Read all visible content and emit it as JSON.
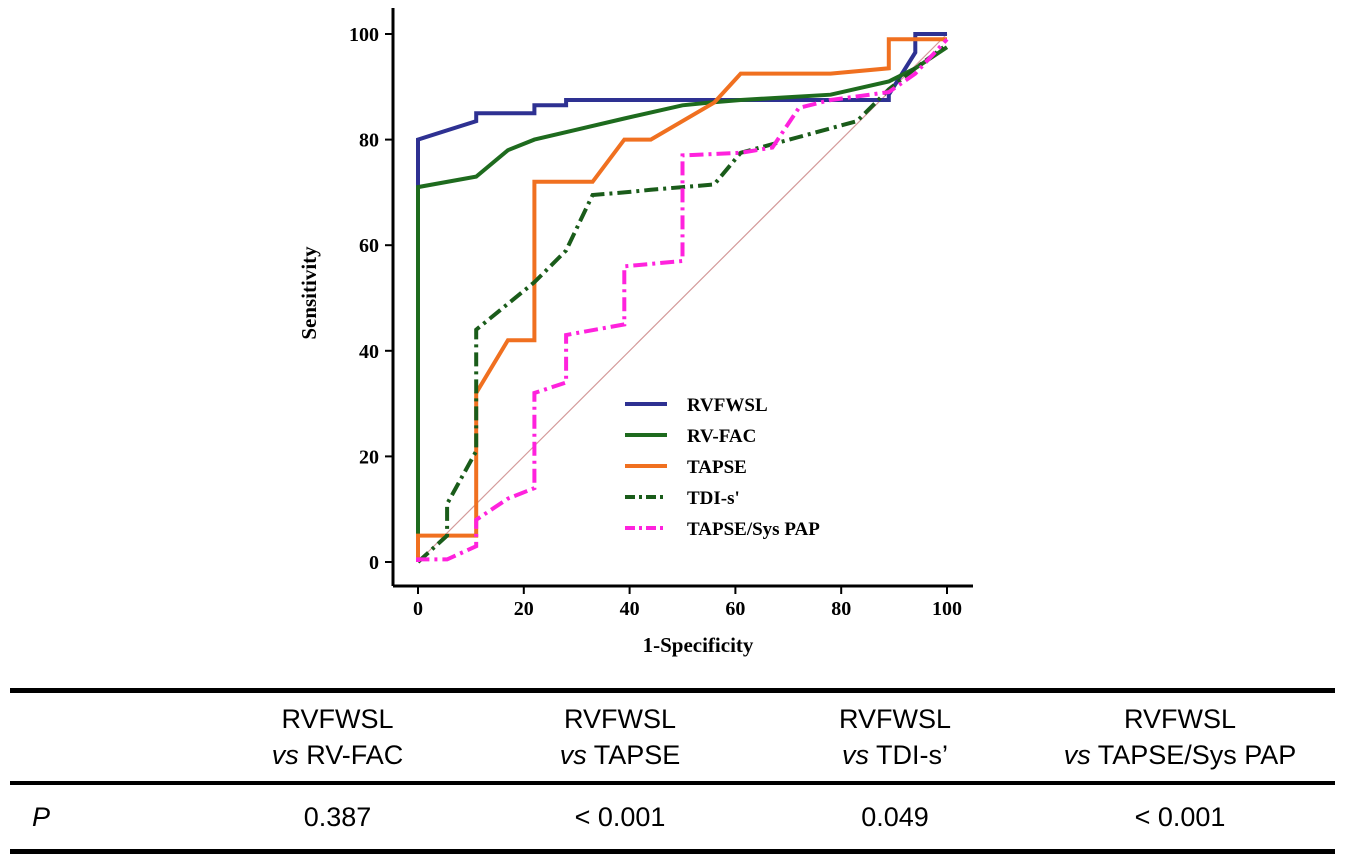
{
  "chart_data": {
    "type": "line",
    "title": "",
    "xlabel": "1-Specificity",
    "ylabel": "Sensitivity",
    "xlim": [
      0,
      100
    ],
    "ylim": [
      0,
      100
    ],
    "xticks": [
      0,
      20,
      40,
      60,
      80,
      100
    ],
    "yticks": [
      0,
      20,
      40,
      60,
      80,
      100
    ],
    "legend_position": "lower-right",
    "series": [
      {
        "name": "RVFWSL",
        "color": "#2e3192",
        "dash": "solid",
        "x": [
          0,
          0,
          0,
          11,
          11,
          22,
          22,
          28,
          28,
          89,
          89,
          94,
          94,
          100,
          100
        ],
        "y": [
          0,
          80,
          80,
          83.5,
          85,
          85,
          86.5,
          86.5,
          87.5,
          87.5,
          88.5,
          96.5,
          100,
          100,
          100
        ]
      },
      {
        "name": "RV-FAC",
        "color": "#1e6b1e",
        "dash": "solid",
        "x": [
          0,
          0,
          11,
          17,
          22,
          39,
          50,
          55,
          61,
          78,
          89,
          94,
          100
        ],
        "y": [
          0,
          71,
          73,
          78,
          80,
          84,
          86.5,
          87,
          87.5,
          88.5,
          91,
          93.5,
          97.5
        ]
      },
      {
        "name": "TAPSE",
        "color": "#f07020",
        "dash": "solid",
        "x": [
          0,
          0,
          11,
          11,
          17,
          22,
          22,
          33,
          39,
          44,
          56,
          61,
          78,
          89,
          89,
          100
        ],
        "y": [
          0,
          5,
          5,
          32,
          42,
          42,
          72,
          72,
          80,
          80,
          87,
          92.5,
          92.5,
          93.5,
          99,
          99
        ]
      },
      {
        "name": "TDI-s'",
        "color": "#1a5c1a",
        "dash": "dashdot",
        "x": [
          0,
          5.5,
          5.5,
          11,
          11,
          22,
          28,
          33,
          39,
          44,
          50,
          56,
          61,
          72,
          83,
          89,
          94,
          100
        ],
        "y": [
          0,
          5,
          11,
          21,
          44,
          53,
          59,
          69.5,
          70,
          70.5,
          71,
          71.5,
          77.5,
          80.5,
          83.5,
          89.5,
          93.5,
          98
        ]
      },
      {
        "name": "TAPSE/Sys PAP",
        "color": "#ff22dd",
        "dash": "dashdot",
        "x": [
          0,
          0,
          5.5,
          11,
          11,
          17,
          22,
          22,
          28,
          28,
          39,
          39,
          50,
          50,
          61,
          67,
          72,
          78,
          89,
          94,
          100
        ],
        "y": [
          0,
          0.5,
          0.5,
          3,
          8,
          12,
          14,
          32,
          34,
          43,
          45,
          56,
          57,
          77,
          77.5,
          78.5,
          86,
          87.5,
          89,
          92.5,
          99
        ]
      }
    ],
    "reference_line": {
      "name": "diagonal",
      "color": "#d49a9a",
      "x": [
        0,
        100
      ],
      "y": [
        0,
        100
      ]
    }
  },
  "table": {
    "columns": [
      {
        "line1": "RVFWSL",
        "vs": "vs",
        "rest": " RV-FAC"
      },
      {
        "line1": "RVFWSL",
        "vs": "vs",
        "rest": " TAPSE"
      },
      {
        "line1": "RVFWSL",
        "vs": "vs",
        "rest": " TDI-s’"
      },
      {
        "line1": "RVFWSL",
        "vs": "vs",
        "rest": " TAPSE/Sys PAP"
      }
    ],
    "row_label": "P",
    "values": [
      "0.387",
      "< 0.001",
      "0.049",
      "< 0.001"
    ]
  }
}
